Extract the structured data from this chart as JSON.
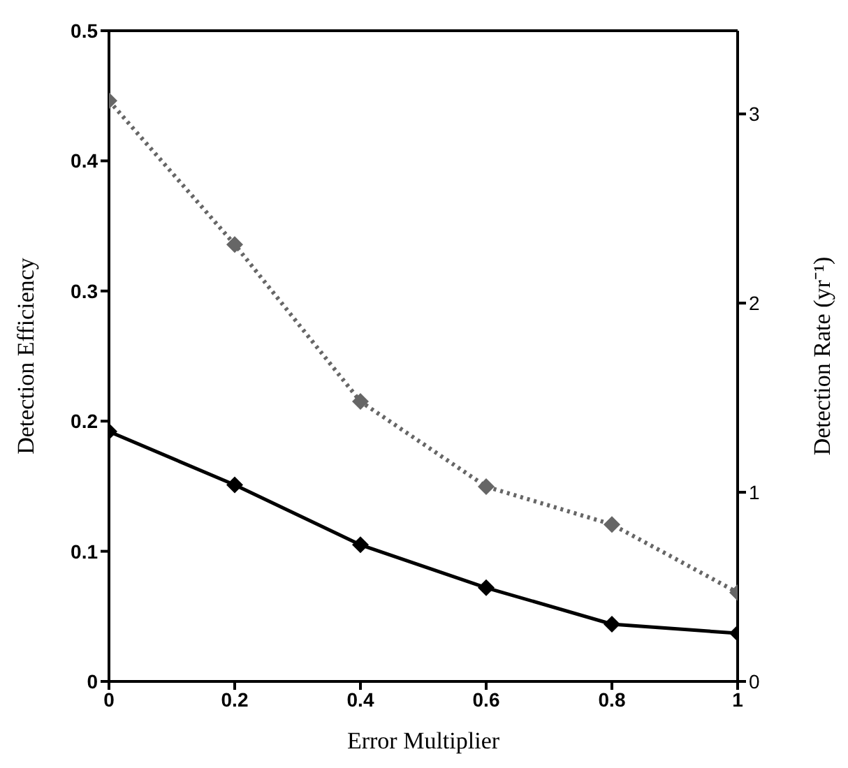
{
  "chart_data": {
    "type": "line",
    "xlabel": "Error Multiplier",
    "ylabel": "Detection Efficiency",
    "y2label": "Detection Rate (yr⁻¹)",
    "x": [
      0,
      0.2,
      0.4,
      0.6,
      0.8,
      1
    ],
    "series": [
      {
        "color": "#000000",
        "values": [
          0.192,
          0.151,
          0.105,
          0.072,
          0.044,
          0.037
        ],
        "line_style": "solid",
        "marker": "diamond"
      },
      {
        "color": "#666666",
        "values": [
          3.07,
          2.31,
          1.48,
          1.03,
          0.83,
          0.47
        ],
        "axis": "y2",
        "line_style": "dotted",
        "marker": "diamond"
      }
    ],
    "xlim": [
      0,
      1
    ],
    "xticks": [
      0,
      0.2,
      0.4,
      0.6,
      0.8,
      1
    ],
    "ylim": [
      0,
      0.5
    ],
    "yticks": [
      0,
      0.1,
      0.2,
      0.3,
      0.4,
      0.5
    ],
    "y2lim": [
      0,
      3.44
    ],
    "y2ticks": [
      0,
      1,
      2,
      3
    ]
  }
}
